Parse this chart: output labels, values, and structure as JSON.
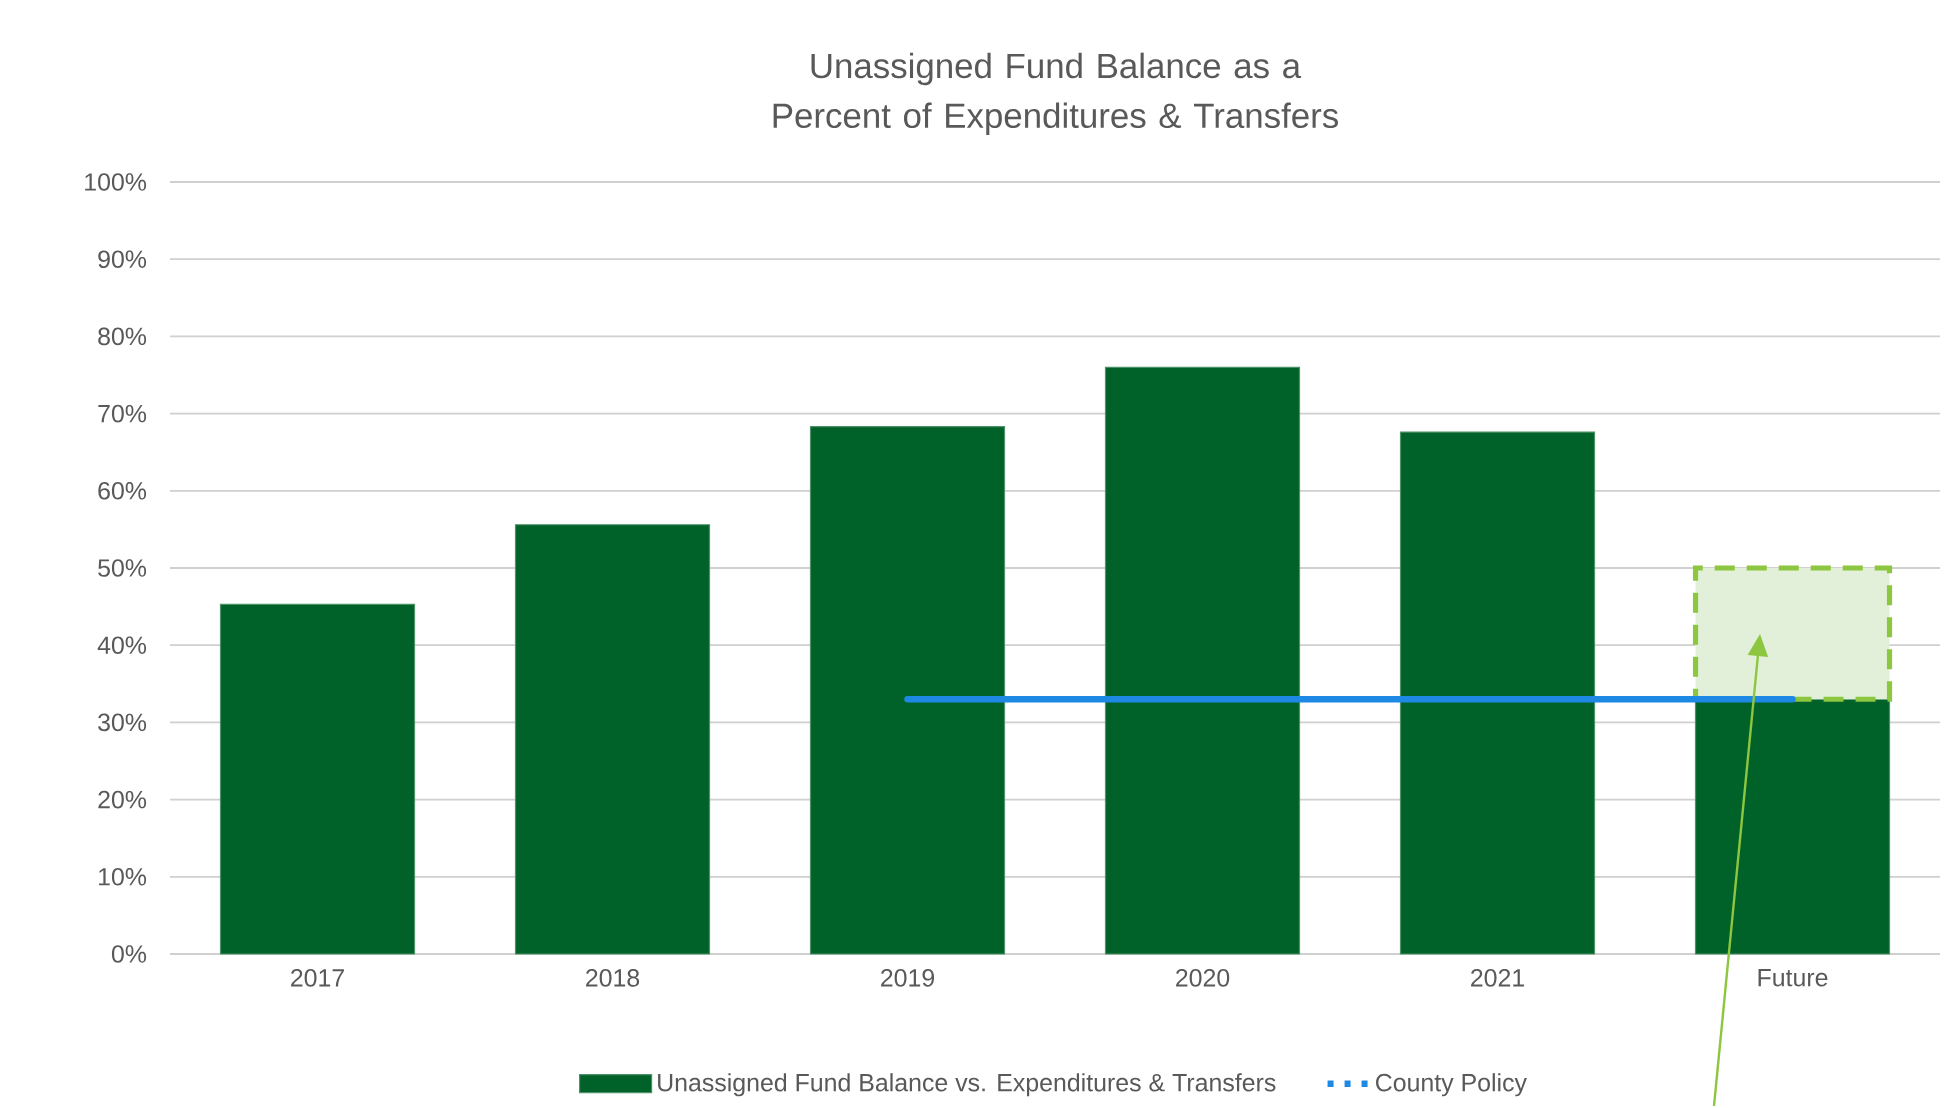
{
  "chart_data": {
    "type": "bar",
    "title": "Unassigned Fund Balance as a Percent of Expenditures & Transfers",
    "categories": [
      "2017",
      "2018",
      "2019",
      "2020",
      "2021",
      "Future"
    ],
    "series": [
      {
        "name": "Unassigned Fund Balance vs. Expenditures & Transfers",
        "color": "#006228",
        "values": [
          45.3,
          55.6,
          68.3,
          76.0,
          67.6,
          33
        ]
      },
      {
        "color": "#e2f0d9",
        "line_style": "dashed",
        "values": [
          null,
          null,
          null,
          null,
          null,
          17
        ]
      },
      {
        "name": "County Policy",
        "type": "line",
        "color": "#1e88e5",
        "values": [
          null,
          null,
          33,
          33,
          33,
          33
        ]
      }
    ],
    "stacked": true,
    "ylim": [
      0,
      100
    ],
    "yticks": [
      {
        "value": 0,
        "label": "0%"
      },
      {
        "value": 10,
        "label": "10%"
      },
      {
        "value": 20,
        "label": "20%"
      },
      {
        "value": 30,
        "label": "30%"
      },
      {
        "value": 40,
        "label": "40%"
      },
      {
        "value": 50,
        "label": "50%"
      },
      {
        "value": 60,
        "label": "60%"
      },
      {
        "value": 70,
        "label": "70%"
      },
      {
        "value": 80,
        "label": "80%"
      },
      {
        "value": 90,
        "label": "90%"
      },
      {
        "value": 100,
        "label": "100%"
      }
    ],
    "grid": "y",
    "legend": "bottom",
    "marker": "none"
  }
}
